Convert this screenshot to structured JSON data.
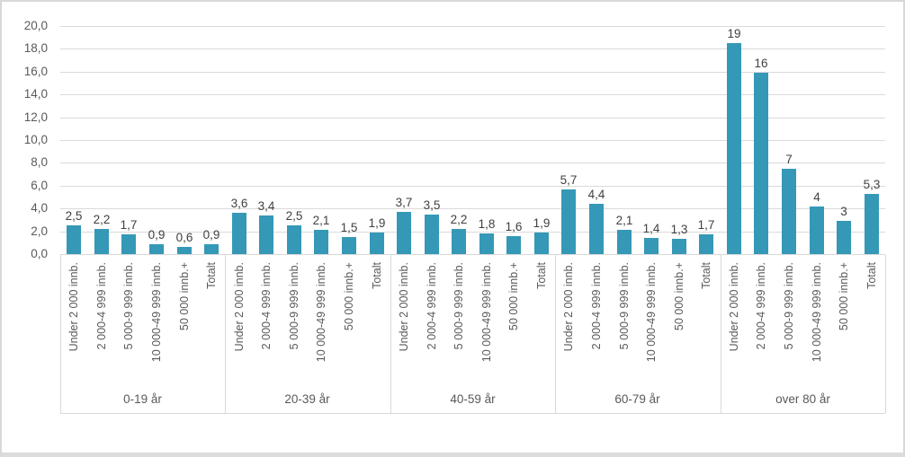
{
  "chart_data": {
    "type": "bar",
    "title": "",
    "xlabel": "",
    "ylabel": "",
    "ylim": [
      0,
      20
    ],
    "ytick_step": 2,
    "ytick_labels": [
      "0,0",
      "2,0",
      "4,0",
      "6,0",
      "8,0",
      "10,0",
      "12,0",
      "14,0",
      "16,0",
      "18,0",
      "20,0"
    ],
    "grid": true,
    "legend": "none",
    "bar_color": "#3598b7",
    "grid_color": "#dadada",
    "sub_categories": [
      "Under 2 000 innb.",
      "2 000-4 999 innb.",
      "5 000-9 999 innb.",
      "10 000-49 999 innb.",
      "50 000 innb.+",
      "Totalt"
    ],
    "groups": [
      {
        "label": "0-19 år",
        "values": [
          2.5,
          2.2,
          1.7,
          0.9,
          0.6,
          0.9
        ],
        "value_labels": [
          "2,5",
          "2,2",
          "1,7",
          "0,9",
          "0,6",
          "0,9"
        ]
      },
      {
        "label": "20-39 år",
        "values": [
          3.6,
          3.4,
          2.5,
          2.1,
          1.5,
          1.9
        ],
        "value_labels": [
          "3,6",
          "3,4",
          "2,5",
          "2,1",
          "1,5",
          "1,9"
        ]
      },
      {
        "label": "40-59 år",
        "values": [
          3.7,
          3.5,
          2.2,
          1.8,
          1.6,
          1.9
        ],
        "value_labels": [
          "3,7",
          "3,5",
          "2,2",
          "1,8",
          "1,6",
          "1,9"
        ]
      },
      {
        "label": "60-79 år",
        "values": [
          5.7,
          4.4,
          2.1,
          1.4,
          1.3,
          1.7
        ],
        "value_labels": [
          "5,7",
          "4,4",
          "2,1",
          "1,4",
          "1,3",
          "1,7"
        ]
      },
      {
        "label": "over 80 år",
        "values": [
          18.5,
          15.9,
          7.5,
          4.2,
          2.9,
          5.3
        ],
        "value_labels": [
          "19",
          "16",
          "7",
          "4",
          "3",
          "5,3"
        ]
      }
    ]
  }
}
